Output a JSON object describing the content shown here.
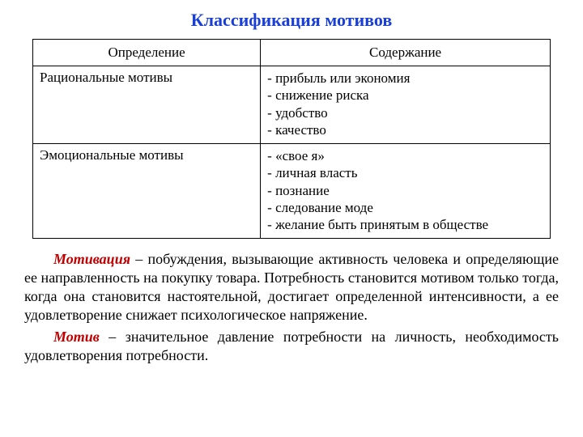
{
  "colors": {
    "title": "#1a3fd6",
    "term": "#c00000",
    "text": "#000000",
    "border": "#000000",
    "background": "#ffffff"
  },
  "fonts": {
    "family": "Times New Roman",
    "title_size_pt": 22,
    "table_size_pt": 17,
    "body_size_pt": 18
  },
  "title": "Классификация мотивов",
  "table": {
    "columns": [
      "Определение",
      "Содержание"
    ],
    "col_widths_pct": [
      44,
      56
    ],
    "rows": [
      {
        "definition": "Рациональные мотивы",
        "items": [
          "- прибыль или экономия",
          "- снижение риска",
          "- удобство",
          "- качество"
        ]
      },
      {
        "definition": "Эмоциональные мотивы",
        "items": [
          "- «свое я»",
          "- личная власть",
          "- познание",
          "- следование моде",
          "- желание быть принятым в обществе"
        ]
      }
    ]
  },
  "paragraphs": [
    {
      "term": "Мотивация",
      "rest": " – побуждения, вызывающие активность человека и определяющие ее направленность на покупку товара. Потребность становится мотивом только тогда, когда она становится настоятельной, достигает определенной интенсивности, а ее удовлетворение снижает психологическое напряжение."
    },
    {
      "term": "Мотив",
      "rest": " – значительное давление потребности на личность, необходимость удовлетворения потребности."
    }
  ]
}
